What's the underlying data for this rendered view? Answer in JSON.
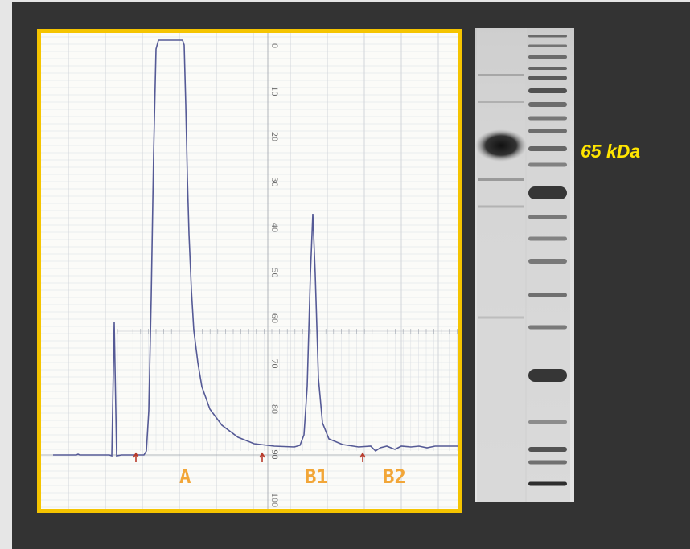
{
  "chromatogram": {
    "scale_ticks": [
      "0",
      "10",
      "20",
      "30",
      "40",
      "50",
      "60",
      "70",
      "80",
      "90",
      "100"
    ],
    "fractions": [
      {
        "label": "A"
      },
      {
        "label": "B1"
      },
      {
        "label": "B2"
      }
    ],
    "colors": {
      "trace": "#555a96",
      "fraction_label": "#f2a638",
      "frame": "#f5c400",
      "marker": "#b83a2a"
    }
  },
  "gel": {
    "band_label": "65 kDa",
    "colors": {
      "label": "#ffe500"
    }
  }
}
